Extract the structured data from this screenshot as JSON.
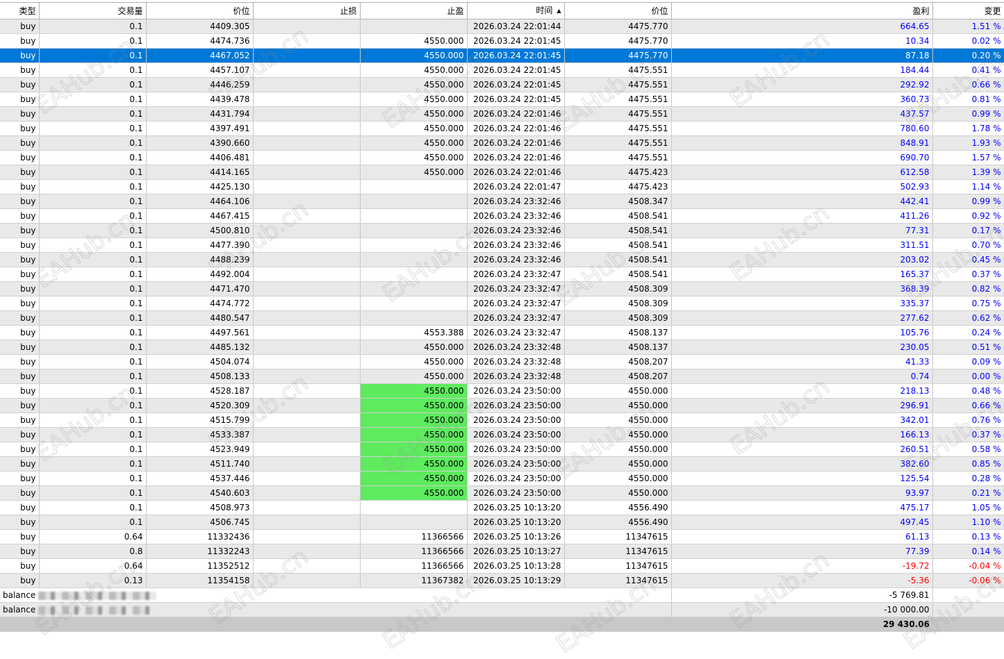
{
  "columns": [
    "类型",
    "交易量",
    "价位",
    "止损",
    "止盈",
    "时间",
    "价位",
    "盈利",
    "变更"
  ],
  "sorted_column": 5,
  "rows": [
    [
      "buy",
      "0.1",
      "4409.305",
      "",
      "",
      "2026.03.24 22:01:44",
      "4475.770",
      "664.65",
      "1.51 %"
    ],
    [
      "buy",
      "0.1",
      "4474.736",
      "",
      "4550.000",
      "2026.03.24 22:01:45",
      "4475.770",
      "10.34",
      "0.02 %"
    ],
    [
      "buy",
      "0.1",
      "4467.052",
      "",
      "4550.000",
      "2026.03.24 22:01:45",
      "4475.770",
      "87.18",
      "0.20 %"
    ],
    [
      "buy",
      "0.1",
      "4457.107",
      "",
      "4550.000",
      "2026.03.24 22:01:45",
      "4475.551",
      "184.44",
      "0.41 %"
    ],
    [
      "buy",
      "0.1",
      "4446.259",
      "",
      "4550.000",
      "2026.03.24 22:01:45",
      "4475.551",
      "292.92",
      "0.66 %"
    ],
    [
      "buy",
      "0.1",
      "4439.478",
      "",
      "4550.000",
      "2026.03.24 22:01:45",
      "4475.551",
      "360.73",
      "0.81 %"
    ],
    [
      "buy",
      "0.1",
      "4431.794",
      "",
      "4550.000",
      "2026.03.24 22:01:46",
      "4475.551",
      "437.57",
      "0.99 %"
    ],
    [
      "buy",
      "0.1",
      "4397.491",
      "",
      "4550.000",
      "2026.03.24 22:01:46",
      "4475.551",
      "780.60",
      "1.78 %"
    ],
    [
      "buy",
      "0.1",
      "4390.660",
      "",
      "4550.000",
      "2026.03.24 22:01:46",
      "4475.551",
      "848.91",
      "1.93 %"
    ],
    [
      "buy",
      "0.1",
      "4406.481",
      "",
      "4550.000",
      "2026.03.24 22:01:46",
      "4475.551",
      "690.70",
      "1.57 %"
    ],
    [
      "buy",
      "0.1",
      "4414.165",
      "",
      "4550.000",
      "2026.03.24 22:01:46",
      "4475.423",
      "612.58",
      "1.39 %"
    ],
    [
      "buy",
      "0.1",
      "4425.130",
      "",
      "",
      "2026.03.24 22:01:47",
      "4475.423",
      "502.93",
      "1.14 %"
    ],
    [
      "buy",
      "0.1",
      "4464.106",
      "",
      "",
      "2026.03.24 23:32:46",
      "4508.347",
      "442.41",
      "0.99 %"
    ],
    [
      "buy",
      "0.1",
      "4467.415",
      "",
      "",
      "2026.03.24 23:32:46",
      "4508.541",
      "411.26",
      "0.92 %"
    ],
    [
      "buy",
      "0.1",
      "4500.810",
      "",
      "",
      "2026.03.24 23:32:46",
      "4508.541",
      "77.31",
      "0.17 %"
    ],
    [
      "buy",
      "0.1",
      "4477.390",
      "",
      "",
      "2026.03.24 23:32:46",
      "4508.541",
      "311.51",
      "0.70 %"
    ],
    [
      "buy",
      "0.1",
      "4488.239",
      "",
      "",
      "2026.03.24 23:32:46",
      "4508.541",
      "203.02",
      "0.45 %"
    ],
    [
      "buy",
      "0.1",
      "4492.004",
      "",
      "",
      "2026.03.24 23:32:47",
      "4508.541",
      "165.37",
      "0.37 %"
    ],
    [
      "buy",
      "0.1",
      "4471.470",
      "",
      "",
      "2026.03.24 23:32:47",
      "4508.309",
      "368.39",
      "0.82 %"
    ],
    [
      "buy",
      "0.1",
      "4474.772",
      "",
      "",
      "2026.03.24 23:32:47",
      "4508.309",
      "335.37",
      "0.75 %"
    ],
    [
      "buy",
      "0.1",
      "4480.547",
      "",
      "",
      "2026.03.24 23:32:47",
      "4508.309",
      "277.62",
      "0.62 %"
    ],
    [
      "buy",
      "0.1",
      "4497.561",
      "",
      "4553.388",
      "2026.03.24 23:32:47",
      "4508.137",
      "105.76",
      "0.24 %"
    ],
    [
      "buy",
      "0.1",
      "4485.132",
      "",
      "4550.000",
      "2026.03.24 23:32:48",
      "4508.137",
      "230.05",
      "0.51 %"
    ],
    [
      "buy",
      "0.1",
      "4504.074",
      "",
      "4550.000",
      "2026.03.24 23:32:48",
      "4508.207",
      "41.33",
      "0.09 %"
    ],
    [
      "buy",
      "0.1",
      "4508.133",
      "",
      "4550.000",
      "2026.03.24 23:32:48",
      "4508.207",
      "0.74",
      "0.00 %"
    ],
    [
      "buy",
      "0.1",
      "4528.187",
      "",
      "4550.000",
      "2026.03.24 23:50:00",
      "4550.000",
      "218.13",
      "0.48 %"
    ],
    [
      "buy",
      "0.1",
      "4520.309",
      "",
      "4550.000",
      "2026.03.24 23:50:00",
      "4550.000",
      "296.91",
      "0.66 %"
    ],
    [
      "buy",
      "0.1",
      "4515.799",
      "",
      "4550.000",
      "2026.03.24 23:50:00",
      "4550.000",
      "342.01",
      "0.76 %"
    ],
    [
      "buy",
      "0.1",
      "4533.387",
      "",
      "4550.000",
      "2026.03.24 23:50:00",
      "4550.000",
      "166.13",
      "0.37 %"
    ],
    [
      "buy",
      "0.1",
      "4523.949",
      "",
      "4550.000",
      "2026.03.24 23:50:00",
      "4550.000",
      "260.51",
      "0.58 %"
    ],
    [
      "buy",
      "0.1",
      "4511.740",
      "",
      "4550.000",
      "2026.03.24 23:50:00",
      "4550.000",
      "382.60",
      "0.85 %"
    ],
    [
      "buy",
      "0.1",
      "4537.446",
      "",
      "4550.000",
      "2026.03.24 23:50:00",
      "4550.000",
      "125.54",
      "0.28 %"
    ],
    [
      "buy",
      "0.1",
      "4540.603",
      "",
      "4550.000",
      "2026.03.24 23:50:00",
      "4550.000",
      "93.97",
      "0.21 %"
    ],
    [
      "buy",
      "0.1",
      "4508.973",
      "",
      "",
      "2026.03.25 10:13:20",
      "4556.490",
      "475.17",
      "1.05 %"
    ],
    [
      "buy",
      "0.1",
      "4506.745",
      "",
      "",
      "2026.03.25 10:13:20",
      "4556.490",
      "497.45",
      "1.10 %"
    ],
    [
      "buy",
      "0.64",
      "11332436",
      "",
      "11366566",
      "2026.03.25 10:13:26",
      "11347615",
      "61.13",
      "0.13 %"
    ],
    [
      "buy",
      "0.8",
      "11332243",
      "",
      "11366566",
      "2026.03.25 10:13:27",
      "11347615",
      "77.39",
      "0.14 %"
    ],
    [
      "buy",
      "0.64",
      "11352512",
      "",
      "11366566",
      "2026.03.25 10:13:28",
      "11347615",
      "-19.72",
      "-0.04 %"
    ],
    [
      "buy",
      "0.13",
      "11354158",
      "",
      "11367382",
      "2026.03.25 10:13:29",
      "11347615",
      "-5.36",
      "-0.06 %"
    ]
  ],
  "selected_row": 2,
  "tp_hit_rows": [
    25,
    26,
    27,
    28,
    29,
    30,
    31,
    32
  ],
  "balance_rows": [
    {
      "label": "balance",
      "profit": "-5 769.81"
    },
    {
      "label": "balance",
      "profit": "-10 000.00"
    }
  ],
  "total": "29 430.06",
  "watermark": "EAHub.cn",
  "colors": {
    "selected": "#0078d7",
    "tp_hit": "#5eeb5e",
    "positive": "#0000ff",
    "negative": "#ff0000"
  }
}
